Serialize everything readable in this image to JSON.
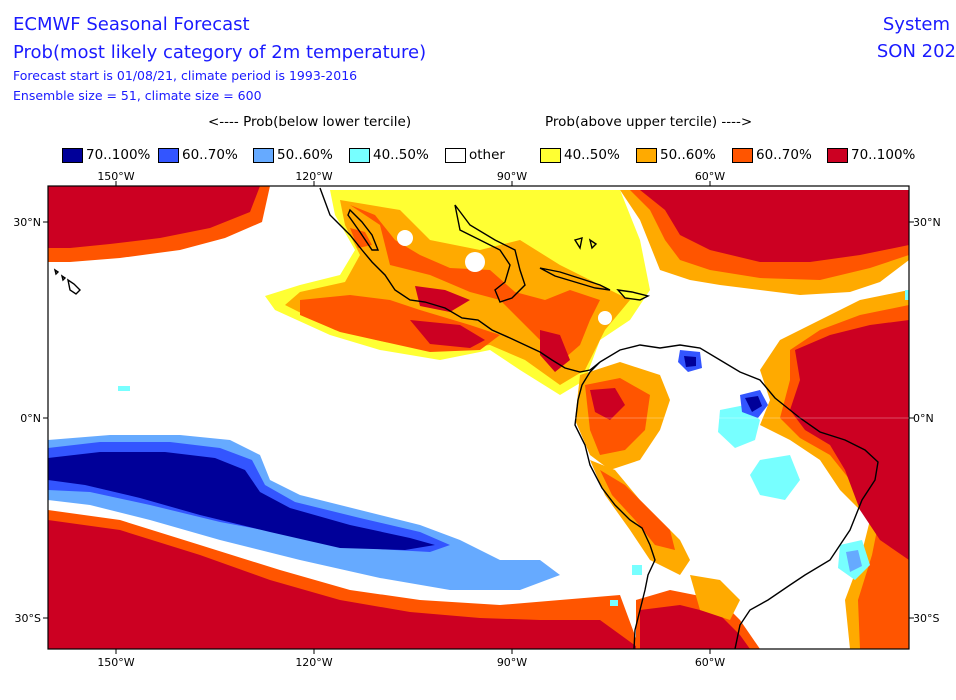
{
  "header": {
    "title": "ECMWF Seasonal Forecast",
    "subtitle": "Prob(most likely category of 2m temperature)",
    "line3": "Forecast start is 01/08/21, climate period is 1993-2016",
    "line4": "Ensemble size = 51, climate size = 600",
    "right_line1": "System",
    "right_line2": "SON 202"
  },
  "legend_headers": {
    "below": "<---- Prob(below lower tercile)",
    "above": "Prob(above upper tercile) ---->"
  },
  "legend": [
    {
      "label": "70..100%",
      "color": "#000099"
    },
    {
      "label": "60..70%",
      "color": "#3355ff"
    },
    {
      "label": "50..60%",
      "color": "#66aaff"
    },
    {
      "label": "40..50%",
      "color": "#77ffff"
    },
    {
      "label": "other",
      "color": "#ffffff"
    },
    {
      "label": "40..50%",
      "color": "#ffff33"
    },
    {
      "label": "50..60%",
      "color": "#ffaa00"
    },
    {
      "label": "60..70%",
      "color": "#ff5500"
    },
    {
      "label": "70..100%",
      "color": "#cc0022"
    }
  ],
  "map": {
    "lon_labels": [
      "150°W",
      "120°W",
      "90°W",
      "60°W"
    ],
    "lat_labels_left": [
      "30°N",
      "0°N",
      "30°S"
    ],
    "lat_labels_right": [
      "30°N",
      "0°N",
      "30°S"
    ]
  }
}
